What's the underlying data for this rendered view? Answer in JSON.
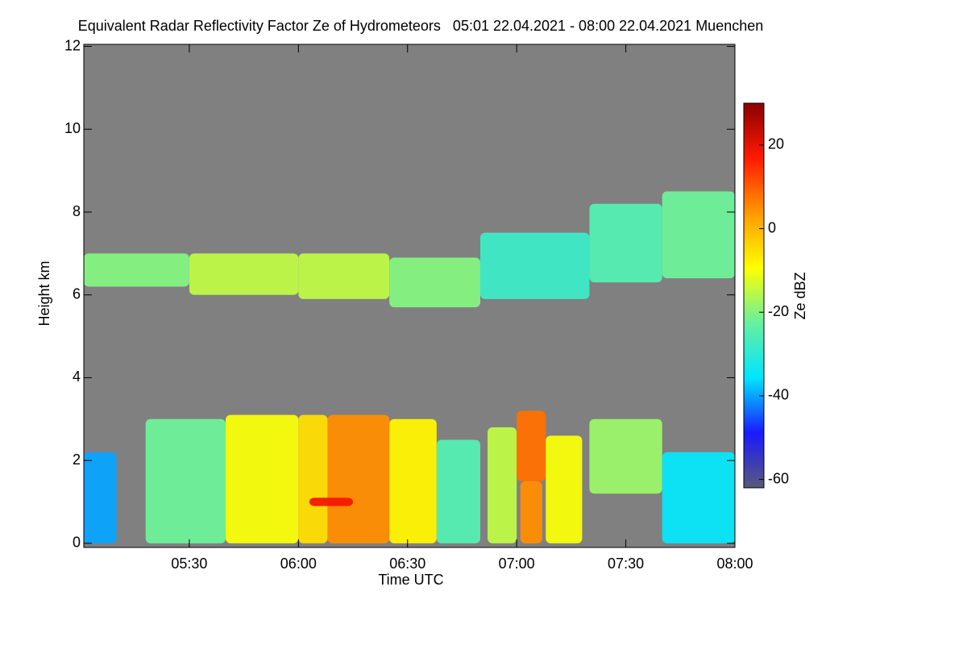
{
  "chart_data": {
    "type": "heatmap",
    "title": "Equivalent Radar Reflectivity Factor Ze of Hydrometeors   05:01 22.04.2021 - 08:00 22.04.2021 Muenchen",
    "x_label": "Time UTC",
    "y_label": "Height km",
    "colorbar_label": "Ze dBZ",
    "xlim": [
      301,
      480
    ],
    "xticks": [
      {
        "value": 330,
        "label": "05:30"
      },
      {
        "value": 360,
        "label": "06:00"
      },
      {
        "value": 390,
        "label": "06:30"
      },
      {
        "value": 420,
        "label": "07:00"
      },
      {
        "value": 450,
        "label": "07:30"
      },
      {
        "value": 480,
        "label": "08:00"
      }
    ],
    "ylim": [
      -0.1,
      12.05
    ],
    "yticks": [
      0,
      2,
      4,
      6,
      8,
      10,
      12
    ],
    "zlim": [
      -62,
      30
    ],
    "zticks": [
      -60,
      -40,
      -20,
      0,
      20
    ],
    "background": "#808080",
    "colormap": [
      "#5a5a78",
      "#1a1aff",
      "#00e5ff",
      "#66f0a0",
      "#ffff00",
      "#ff9900",
      "#ff1a00",
      "#8b0000"
    ],
    "cells": [
      {
        "t0": 301,
        "t1": 330,
        "base": 6.2,
        "top": 7.0,
        "ze": -20
      },
      {
        "t0": 330,
        "t1": 360,
        "base": 6.0,
        "top": 7.0,
        "ze": -15
      },
      {
        "t0": 360,
        "t1": 385,
        "base": 5.9,
        "top": 7.0,
        "ze": -15
      },
      {
        "t0": 385,
        "t1": 410,
        "base": 5.7,
        "top": 6.9,
        "ze": -20
      },
      {
        "t0": 410,
        "t1": 440,
        "base": 5.9,
        "top": 7.5,
        "ze": -28
      },
      {
        "t0": 440,
        "t1": 460,
        "base": 6.3,
        "top": 8.2,
        "ze": -25
      },
      {
        "t0": 460,
        "t1": 480,
        "base": 6.4,
        "top": 8.5,
        "ze": -22
      },
      {
        "t0": 301,
        "t1": 310,
        "base": 0,
        "top": 2.2,
        "ze": -40
      },
      {
        "t0": 318,
        "t1": 340,
        "base": 0,
        "top": 3.0,
        "ze": -22
      },
      {
        "t0": 340,
        "t1": 360,
        "base": 0,
        "top": 3.1,
        "ze": -10
      },
      {
        "t0": 360,
        "t1": 368,
        "base": 0,
        "top": 3.1,
        "ze": -5
      },
      {
        "t0": 368,
        "t1": 385,
        "base": 0,
        "top": 3.1,
        "ze": 5
      },
      {
        "t0": 385,
        "t1": 398,
        "base": 0,
        "top": 3.0,
        "ze": -8
      },
      {
        "t0": 398,
        "t1": 410,
        "base": 0,
        "top": 2.5,
        "ze": -25
      },
      {
        "t0": 412,
        "t1": 420,
        "base": 0,
        "top": 2.8,
        "ze": -15
      },
      {
        "t0": 420,
        "t1": 428,
        "base": 1.5,
        "top": 3.2,
        "ze": 8
      },
      {
        "t0": 421,
        "t1": 427,
        "base": 0,
        "top": 1.5,
        "ze": 5
      },
      {
        "t0": 428,
        "t1": 438,
        "base": 0,
        "top": 2.6,
        "ze": -10
      },
      {
        "t0": 440,
        "t1": 460,
        "base": 1.2,
        "top": 3.0,
        "ze": -18
      },
      {
        "t0": 460,
        "t1": 480,
        "base": 0,
        "top": 2.2,
        "ze": -35
      },
      {
        "t0": 363,
        "t1": 375,
        "base": 0.9,
        "top": 1.1,
        "ze": 18
      }
    ]
  }
}
